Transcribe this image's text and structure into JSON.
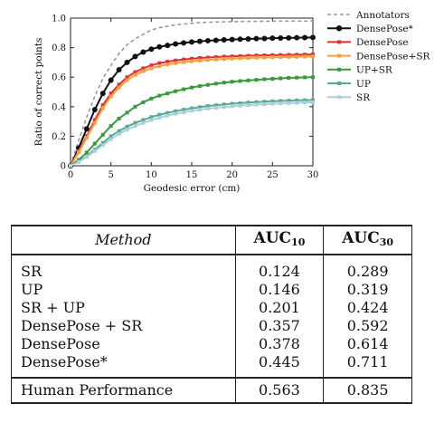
{
  "chart_data": {
    "type": "line",
    "xlabel": "Geodesic error (cm)",
    "ylabel": "Ratio of correct points",
    "xlim": [
      0,
      30
    ],
    "ylim": [
      0,
      1.0
    ],
    "xticks": [
      0,
      5,
      10,
      15,
      20,
      25,
      30
    ],
    "yticks": [
      0,
      0.2,
      0.4,
      0.6,
      0.8,
      1.0
    ],
    "ytick_labels": [
      "0",
      "0.2",
      "0.4",
      "0.6",
      "0.8",
      "1.0"
    ],
    "grid": false,
    "legend_position": "right",
    "x": [
      0,
      1,
      2,
      3,
      4,
      5,
      6,
      7,
      8,
      9,
      10,
      11,
      12,
      13,
      14,
      15,
      16,
      17,
      18,
      19,
      20,
      21,
      22,
      23,
      24,
      25,
      26,
      27,
      28,
      29,
      30
    ],
    "series": [
      {
        "name": "Annotators",
        "color": "#999999",
        "style": "dashed",
        "marker": "none",
        "values": [
          0.0,
          0.17,
          0.33,
          0.47,
          0.59,
          0.68,
          0.76,
          0.82,
          0.86,
          0.89,
          0.92,
          0.935,
          0.945,
          0.955,
          0.96,
          0.965,
          0.97,
          0.972,
          0.974,
          0.975,
          0.976,
          0.977,
          0.978,
          0.978,
          0.979,
          0.979,
          0.98,
          0.98,
          0.98,
          0.98,
          0.98
        ]
      },
      {
        "name": "DensePose*",
        "color": "#111111",
        "style": "solid",
        "marker": "circle",
        "values": [
          0.0,
          0.12,
          0.25,
          0.38,
          0.49,
          0.58,
          0.65,
          0.7,
          0.74,
          0.77,
          0.79,
          0.805,
          0.815,
          0.825,
          0.832,
          0.838,
          0.843,
          0.847,
          0.85,
          0.853,
          0.855,
          0.857,
          0.859,
          0.861,
          0.862,
          0.864,
          0.865,
          0.866,
          0.867,
          0.868,
          0.869
        ]
      },
      {
        "name": "DensePose",
        "color": "#e03030",
        "style": "solid",
        "marker": "square",
        "values": [
          0.0,
          0.1,
          0.2,
          0.31,
          0.41,
          0.49,
          0.55,
          0.6,
          0.635,
          0.66,
          0.68,
          0.695,
          0.705,
          0.713,
          0.72,
          0.725,
          0.73,
          0.733,
          0.736,
          0.739,
          0.741,
          0.743,
          0.745,
          0.747,
          0.748,
          0.749,
          0.75,
          0.751,
          0.752,
          0.753,
          0.754
        ]
      },
      {
        "name": "DensePose+SR",
        "color": "#f5a040",
        "style": "solid",
        "marker": "square",
        "values": [
          0.0,
          0.09,
          0.19,
          0.29,
          0.39,
          0.47,
          0.53,
          0.58,
          0.615,
          0.64,
          0.66,
          0.675,
          0.686,
          0.695,
          0.702,
          0.708,
          0.713,
          0.717,
          0.72,
          0.723,
          0.726,
          0.728,
          0.73,
          0.732,
          0.733,
          0.735,
          0.736,
          0.737,
          0.738,
          0.739,
          0.74
        ]
      },
      {
        "name": "UP+SR",
        "color": "#3a9a3a",
        "style": "solid",
        "marker": "square",
        "values": [
          0.0,
          0.04,
          0.09,
          0.15,
          0.21,
          0.27,
          0.32,
          0.36,
          0.4,
          0.43,
          0.455,
          0.475,
          0.49,
          0.505,
          0.518,
          0.53,
          0.54,
          0.548,
          0.556,
          0.563,
          0.569,
          0.574,
          0.578,
          0.582,
          0.586,
          0.589,
          0.592,
          0.595,
          0.597,
          0.599,
          0.6
        ]
      },
      {
        "name": "UP",
        "color": "#5aa890",
        "style": "solid",
        "marker": "square",
        "values": [
          0.0,
          0.03,
          0.065,
          0.11,
          0.155,
          0.2,
          0.235,
          0.265,
          0.29,
          0.31,
          0.33,
          0.345,
          0.358,
          0.37,
          0.38,
          0.389,
          0.397,
          0.404,
          0.41,
          0.415,
          0.42,
          0.424,
          0.428,
          0.431,
          0.434,
          0.437,
          0.439,
          0.441,
          0.443,
          0.444,
          0.445
        ]
      },
      {
        "name": "SR",
        "color": "#a8d0e0",
        "style": "solid",
        "marker": "square",
        "values": [
          0.0,
          0.025,
          0.06,
          0.1,
          0.14,
          0.18,
          0.215,
          0.245,
          0.27,
          0.29,
          0.31,
          0.325,
          0.34,
          0.352,
          0.362,
          0.372,
          0.38,
          0.387,
          0.393,
          0.398,
          0.403,
          0.407,
          0.411,
          0.414,
          0.417,
          0.42,
          0.422,
          0.424,
          0.426,
          0.428,
          0.43
        ]
      }
    ]
  },
  "table": {
    "headers": {
      "method": "Method",
      "auc10_main": "AUC",
      "auc10_sub": "10",
      "auc30_main": "AUC",
      "auc30_sub": "30"
    },
    "rows": [
      {
        "method": "SR",
        "auc10": "0.124",
        "auc30": "0.289"
      },
      {
        "method": "UP",
        "auc10": "0.146",
        "auc30": "0.319"
      },
      {
        "method": "SR + UP",
        "auc10": "0.201",
        "auc30": "0.424"
      },
      {
        "method": "DensePose + SR",
        "auc10": "0.357",
        "auc30": "0.592"
      },
      {
        "method": "DensePose",
        "auc10": "0.378",
        "auc30": "0.614"
      },
      {
        "method": "DensePose*",
        "auc10": "0.445",
        "auc30": "0.711"
      }
    ],
    "footer": {
      "method": "Human Performance",
      "auc10": "0.563",
      "auc30": "0.835"
    }
  }
}
